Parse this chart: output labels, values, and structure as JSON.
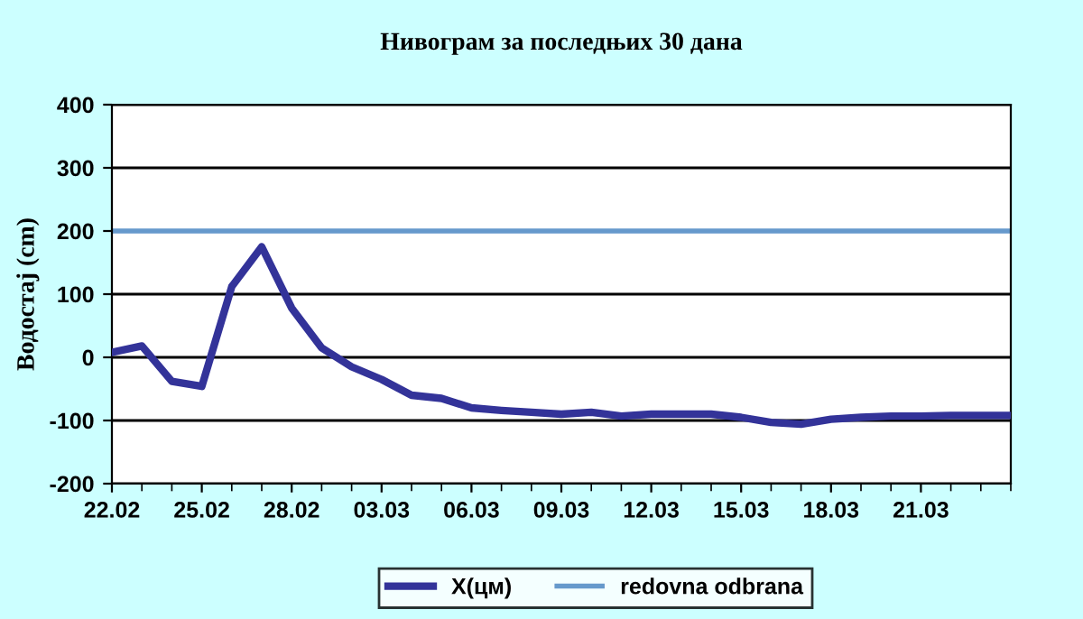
{
  "chart_data": {
    "type": "line",
    "title": "Нивограм за последњих 30 дана",
    "ylabel": "Водостај (cm)",
    "categories": [
      "22.02",
      null,
      null,
      "25.02",
      null,
      null,
      "28.02",
      null,
      null,
      "03.03",
      null,
      null,
      "06.03",
      null,
      null,
      "09.03",
      null,
      null,
      "12.03",
      null,
      null,
      "15.03",
      null,
      null,
      "18.03",
      null,
      null,
      "21.03",
      null,
      null,
      null
    ],
    "series": [
      {
        "name": "X(цм)",
        "color": "#333399",
        "values": [
          8,
          18,
          -38,
          -46,
          112,
          175,
          78,
          15,
          -15,
          -35,
          -60,
          -65,
          -80,
          -84,
          -87,
          -90,
          -87,
          -93,
          -90,
          -90,
          -90,
          -95,
          -103,
          -106,
          -98,
          -95,
          -93,
          -93,
          -92,
          -92,
          -92
        ]
      }
    ],
    "ref_lines": [
      {
        "axis": "y",
        "value": 200,
        "label": "redovna odbrana",
        "color": "#6699cc"
      }
    ],
    "ylim": [
      -200,
      400
    ],
    "yticks": [
      -200,
      -100,
      0,
      100,
      200,
      300,
      400
    ],
    "grid": "y",
    "legend": "bottom"
  }
}
